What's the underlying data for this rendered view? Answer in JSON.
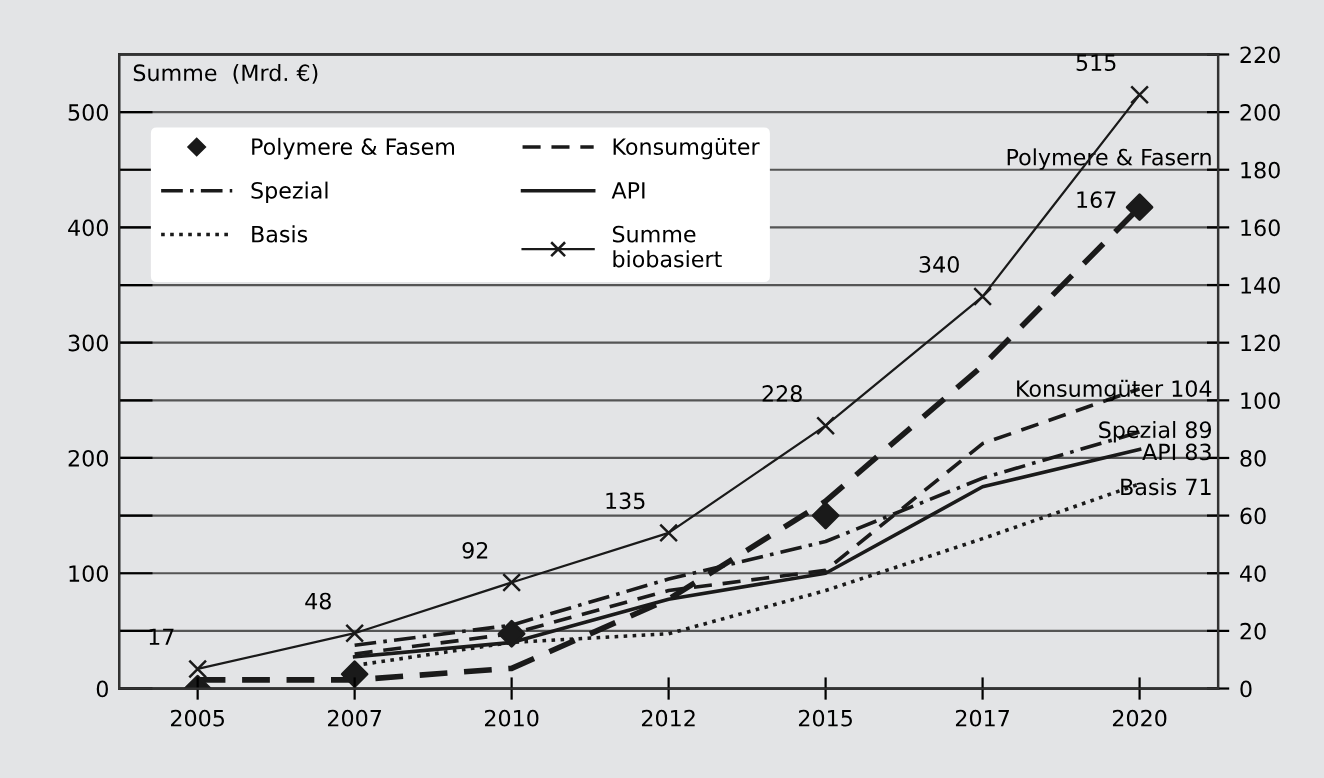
{
  "chart_data": {
    "type": "line",
    "ylabel": "Summe  (Mrd. €)",
    "categories": [
      "2005",
      "2007",
      "2010",
      "2012",
      "2015",
      "2017",
      "2020"
    ],
    "ylim": [
      0,
      550
    ],
    "yticks": [
      0,
      {
        "value": 50,
        "label": null
      },
      100,
      {
        "value": 150,
        "label": null
      },
      200,
      {
        "value": 250,
        "label": null
      },
      300,
      {
        "value": 350,
        "label": null
      },
      400,
      {
        "value": 450,
        "label": null
      },
      500
    ],
    "y2lim": [
      0,
      220
    ],
    "y2ticks": [
      0,
      20,
      40,
      60,
      80,
      100,
      120,
      140,
      160,
      180,
      200,
      220
    ],
    "grid": "y",
    "legend": "top left",
    "series": [
      {
        "name": "Polymere & Fasem",
        "type": "scatter",
        "axis": "y2",
        "marker": "diamond",
        "color": "#1a1a1a",
        "values": [
          0,
          5,
          19,
          null,
          60,
          null,
          167
        ],
        "value_labels": [
          null,
          null,
          null,
          null,
          null,
          null,
          "167"
        ]
      },
      {
        "name": "Konsumgüter",
        "axis": "y2",
        "line_style": "dashed",
        "color": "#1a1a1a",
        "values": [
          null,
          12,
          19,
          34,
          41,
          85,
          104
        ]
      },
      {
        "name": "Spezial",
        "axis": "y2",
        "line_style": "dashdot",
        "color": "#1a1a1a",
        "values": [
          null,
          15,
          22,
          38,
          51,
          73,
          89
        ]
      },
      {
        "name": "API",
        "axis": "y2",
        "line_style": "solid",
        "color": "#1a1a1a",
        "values": [
          null,
          11,
          16,
          31,
          40,
          70,
          83
        ]
      },
      {
        "name": "Basis",
        "axis": "y2",
        "line_style": "dotted",
        "color": "#1a1a1a",
        "values": [
          null,
          8,
          16,
          19,
          34,
          52,
          71
        ]
      },
      {
        "name": "Summe biobasiert",
        "axis": "y",
        "line_style": "solid",
        "marker": "cross",
        "color": "#1a1a1a",
        "values": [
          17,
          48,
          92,
          135,
          228,
          340,
          515
        ],
        "data_labels": true
      },
      {
        "axis": "y2",
        "line_style": "dashed",
        "color": "#1a1a1a",
        "values": [
          3,
          3,
          7,
          31,
          65,
          112,
          167
        ]
      }
    ],
    "annotations": [
      "Konsumgüter 104",
      "Spezial 89",
      "API 83",
      "Basis 71",
      "Polymere & Fasern"
    ]
  }
}
